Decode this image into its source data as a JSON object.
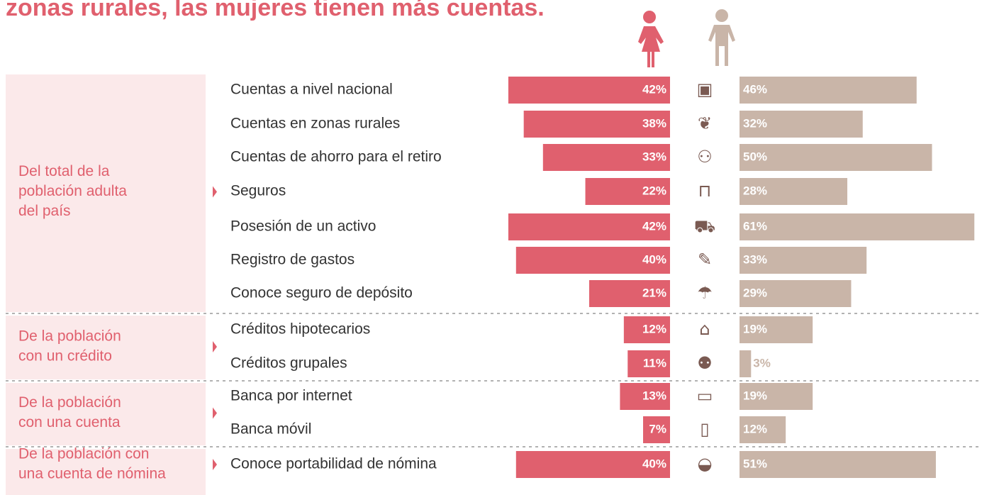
{
  "chart_data": {
    "type": "butterfly-bar",
    "title": "zonas rurales, las mujeres tienen más cuentas.",
    "groups": [
      {
        "label": [
          "Del total de la",
          "población adulta",
          "del país"
        ],
        "categories": [
          "Cuentas a nivel nacional",
          "Cuentas en zonas rurales",
          "Cuentas de ahorro para el retiro",
          "Seguros",
          "Posesión de un activo",
          "Registro de gastos",
          "Conoce seguro de depósito"
        ]
      },
      {
        "label": [
          "De la población",
          "con un crédito"
        ],
        "categories": [
          "Créditos hipotecarios",
          "Créditos grupales"
        ]
      },
      {
        "label": [
          "De la población",
          "con una cuenta"
        ],
        "categories": [
          "Banca por internet",
          "Banca móvil"
        ]
      },
      {
        "label": [
          "De la población con",
          "una cuenta de nómina"
        ],
        "categories": [
          "Conoce portabilidad de nómina"
        ]
      }
    ],
    "series": [
      {
        "color": "#e0606e",
        "values": [
          42,
          38,
          33,
          22,
          42,
          40,
          21,
          12,
          11,
          13,
          7,
          40
        ],
        "value_labels": [
          "42%",
          "38%",
          "33%",
          "22%",
          "42%",
          "40%",
          "21%",
          "12%",
          "11%",
          "13%",
          "7%",
          "40%"
        ]
      },
      {
        "color": "#c9b5a8",
        "values": [
          46,
          32,
          50,
          28,
          61,
          33,
          29,
          19,
          3,
          19,
          12,
          51
        ],
        "value_labels": [
          "46%",
          "32%",
          "50%",
          "28%",
          "61%",
          "33%",
          "29%",
          "19%",
          "3%",
          "19%",
          "12%",
          "51%"
        ]
      }
    ]
  }
}
